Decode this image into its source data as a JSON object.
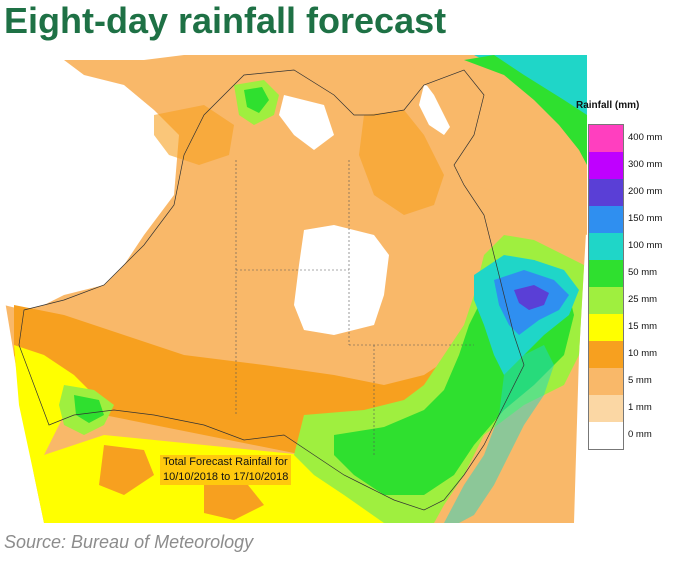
{
  "title": "Eight-day rainfall forecast",
  "source": "Source: Bureau of Meteorology",
  "legend": {
    "title": "Rainfall (mm)",
    "items": [
      {
        "label": "400 mm",
        "color": "#ff3fbf"
      },
      {
        "label": "300 mm",
        "color": "#bf00ff"
      },
      {
        "label": "200 mm",
        "color": "#5a3fd6"
      },
      {
        "label": "150 mm",
        "color": "#2f8ff0"
      },
      {
        "label": "100 mm",
        "color": "#1fd6c8"
      },
      {
        "label": "50 mm",
        "color": "#2fe02f"
      },
      {
        "label": "25 mm",
        "color": "#9fef3f"
      },
      {
        "label": "15 mm",
        "color": "#ffff00"
      },
      {
        "label": "10 mm",
        "color": "#f7a01f"
      },
      {
        "label": "5 mm",
        "color": "#f9b869"
      },
      {
        "label": "1 mm",
        "color": "#fbd7a4"
      },
      {
        "label": "0 mm",
        "color": "#ffffff"
      }
    ]
  },
  "caption": {
    "line1": "Total Forecast Rainfall for",
    "line2": "10/10/2018 to 17/10/2018"
  }
}
